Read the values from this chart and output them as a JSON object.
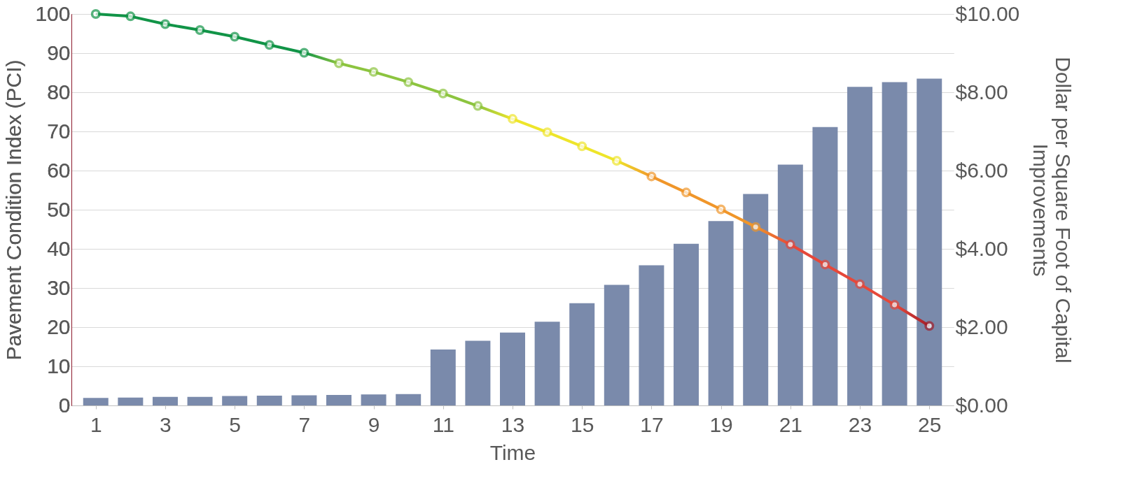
{
  "chart_data": {
    "type": "line",
    "xlabel": "Time",
    "ylabel": "Pavement Condition Index (PCI)",
    "y2label": "Dollar per Square Foot of Capital Improvements",
    "x": [
      1,
      2,
      3,
      4,
      5,
      6,
      7,
      8,
      9,
      10,
      11,
      12,
      13,
      14,
      15,
      16,
      17,
      18,
      19,
      20,
      21,
      22,
      23,
      24,
      25
    ],
    "xlim": [
      0.4,
      25.6
    ],
    "xticks": [
      1,
      3,
      5,
      7,
      9,
      11,
      13,
      15,
      17,
      19,
      21,
      23,
      25
    ],
    "ylim": [
      0,
      100
    ],
    "yticks": [
      0,
      10,
      20,
      30,
      40,
      50,
      60,
      70,
      80,
      90,
      100
    ],
    "y2lim": [
      0,
      10
    ],
    "y2ticks": [
      {
        "value": 0,
        "label": "$0.00"
      },
      {
        "value": 2,
        "label": "$2.00"
      },
      {
        "value": 4,
        "label": "$4.00"
      },
      {
        "value": 6,
        "label": "$6.00"
      },
      {
        "value": 8,
        "label": "$8.00"
      },
      {
        "value": 10,
        "label": "$10.00"
      }
    ],
    "grid": "y",
    "marker": "circle",
    "line_style": "solid",
    "series": [
      {
        "type": "bar",
        "axis": "y2",
        "color": "#7a8aab",
        "values": [
          0.19,
          0.2,
          0.22,
          0.22,
          0.24,
          0.25,
          0.26,
          0.27,
          0.28,
          0.29,
          1.43,
          1.65,
          1.86,
          2.14,
          2.61,
          3.08,
          3.58,
          4.13,
          4.71,
          5.4,
          6.15,
          7.11,
          8.14,
          8.26,
          8.35
        ]
      },
      {
        "colors": [
          "#119447",
          "#119447",
          "#119447",
          "#119447",
          "#119447",
          "#119447",
          "#119447",
          "#8cc43f",
          "#8cc43f",
          "#8cc43f",
          "#8cc43f",
          "#8cc43f",
          "#eee52a",
          "#eee52a",
          "#eee52a",
          "#eee52a",
          "#f0962a",
          "#f0962a",
          "#f0962a",
          "#f0962a",
          "#e6483a",
          "#e6483a",
          "#e6483a",
          "#e6483a",
          "#a31f2a"
        ],
        "values": [
          100,
          99.4,
          97.4,
          95.9,
          94.2,
          92.1,
          90.1,
          87.4,
          85.2,
          82.6,
          79.7,
          76.5,
          73.2,
          69.8,
          66.2,
          62.5,
          58.5,
          54.4,
          50.1,
          45.6,
          41.1,
          36.0,
          31.0,
          25.7,
          20.3
        ]
      }
    ]
  }
}
